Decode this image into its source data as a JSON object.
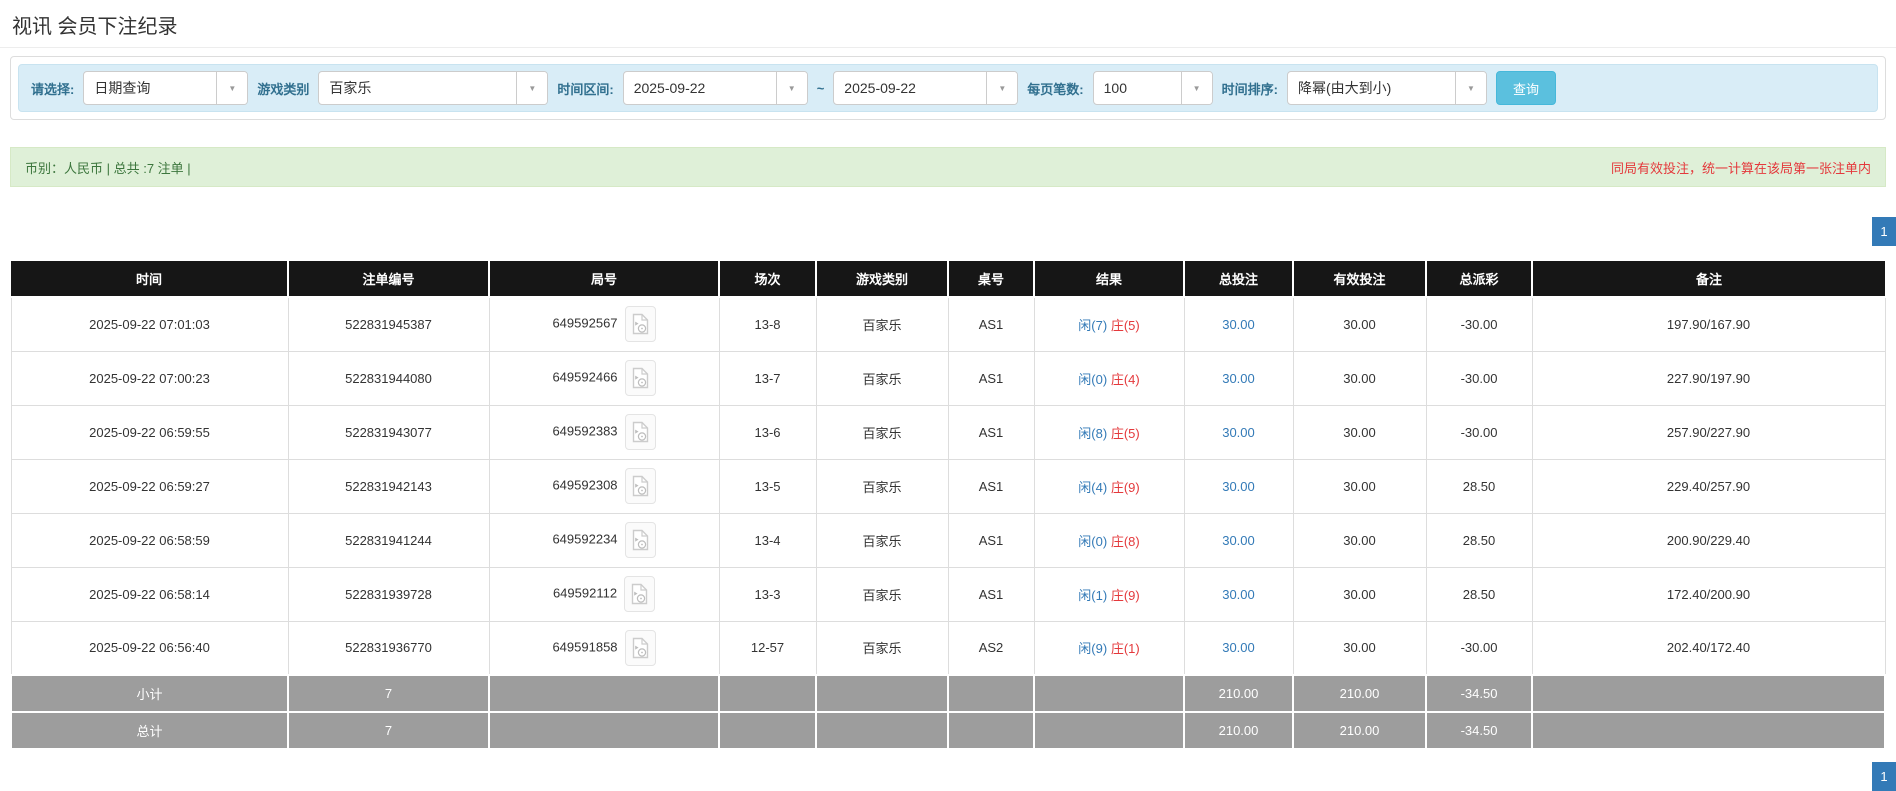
{
  "page": {
    "title": "视讯 会员下注纪录"
  },
  "filters": {
    "select_label": "请选择:",
    "select_value": "日期查询",
    "game_type_label": "游戏类别",
    "game_type_value": "百家乐",
    "time_range_label": "时间区间:",
    "date_from": "2025-09-22",
    "tilde": "~",
    "date_to": "2025-09-22",
    "page_size_label": "每页笔数:",
    "page_size_value": "100",
    "sort_label": "时间排序:",
    "sort_value": "降幂(由大到小)",
    "search_button": "查询"
  },
  "summary": {
    "left_text": "币别：人民币 | 总共 :7 注单 |",
    "right_note": "同局有效投注，统一计算在该局第一张注单内"
  },
  "pagination": {
    "page": "1"
  },
  "colors": {
    "accent_blue": "#337ab7",
    "result_player_blue": "#337ab7",
    "result_banker_red": "#e4393c",
    "negative_red": "#e4393c",
    "header_bg": "#161616",
    "sum_row_bg": "#9d9d9d",
    "search_btn_bg": "#5bc0de",
    "filter_bar_bg": "#d9edf7",
    "summary_bar_bg": "#dff0d8"
  },
  "table": {
    "headers": [
      "时间",
      "注单编号",
      "局号",
      "场次",
      "游戏类别",
      "桌号",
      "结果",
      "总投注",
      "有效投注",
      "总派彩",
      "备注"
    ],
    "icon_name": "video-file-icon",
    "rows": [
      {
        "time": "2025-09-22 07:01:03",
        "bet_id": "522831945387",
        "round_id": "649592567",
        "session": "13-8",
        "game": "百家乐",
        "table_no": "AS1",
        "result_player": "闲(7)",
        "result_banker": "庄(5)",
        "total_bet": "30.00",
        "valid_bet": "30.00",
        "payout": "-30.00",
        "remark": "197.90/167.90"
      },
      {
        "time": "2025-09-22 07:00:23",
        "bet_id": "522831944080",
        "round_id": "649592466",
        "session": "13-7",
        "game": "百家乐",
        "table_no": "AS1",
        "result_player": "闲(0)",
        "result_banker": "庄(4)",
        "total_bet": "30.00",
        "valid_bet": "30.00",
        "payout": "-30.00",
        "remark": "227.90/197.90"
      },
      {
        "time": "2025-09-22 06:59:55",
        "bet_id": "522831943077",
        "round_id": "649592383",
        "session": "13-6",
        "game": "百家乐",
        "table_no": "AS1",
        "result_player": "闲(8)",
        "result_banker": "庄(5)",
        "total_bet": "30.00",
        "valid_bet": "30.00",
        "payout": "-30.00",
        "remark": "257.90/227.90"
      },
      {
        "time": "2025-09-22 06:59:27",
        "bet_id": "522831942143",
        "round_id": "649592308",
        "session": "13-5",
        "game": "百家乐",
        "table_no": "AS1",
        "result_player": "闲(4)",
        "result_banker": "庄(9)",
        "total_bet": "30.00",
        "valid_bet": "30.00",
        "payout": "28.50",
        "remark": "229.40/257.90"
      },
      {
        "time": "2025-09-22 06:58:59",
        "bet_id": "522831941244",
        "round_id": "649592234",
        "session": "13-4",
        "game": "百家乐",
        "table_no": "AS1",
        "result_player": "闲(0)",
        "result_banker": "庄(8)",
        "total_bet": "30.00",
        "valid_bet": "30.00",
        "payout": "28.50",
        "remark": "200.90/229.40"
      },
      {
        "time": "2025-09-22 06:58:14",
        "bet_id": "522831939728",
        "round_id": "649592112",
        "session": "13-3",
        "game": "百家乐",
        "table_no": "AS1",
        "result_player": "闲(1)",
        "result_banker": "庄(9)",
        "total_bet": "30.00",
        "valid_bet": "30.00",
        "payout": "28.50",
        "remark": "172.40/200.90"
      },
      {
        "time": "2025-09-22 06:56:40",
        "bet_id": "522831936770",
        "round_id": "649591858",
        "session": "12-57",
        "game": "百家乐",
        "table_no": "AS2",
        "result_player": "闲(9)",
        "result_banker": "庄(1)",
        "total_bet": "30.00",
        "valid_bet": "30.00",
        "payout": "-30.00",
        "remark": "202.40/172.40"
      }
    ],
    "subtotal": {
      "label": "小计",
      "count": "7",
      "total_bet": "210.00",
      "valid_bet": "210.00",
      "payout": "-34.50"
    },
    "total": {
      "label": "总计",
      "count": "7",
      "total_bet": "210.00",
      "valid_bet": "210.00",
      "payout": "-34.50"
    }
  }
}
